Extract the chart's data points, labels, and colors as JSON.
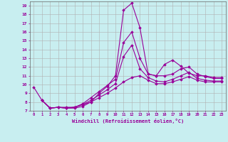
{
  "title": "",
  "xlabel": "Windchill (Refroidissement éolien,°C)",
  "background_color": "#c8eef0",
  "grid_color": "#b0b0b0",
  "line_color": "#990099",
  "xlim": [
    -0.5,
    23.5
  ],
  "ylim": [
    7,
    19.5
  ],
  "xticks": [
    0,
    1,
    2,
    3,
    4,
    5,
    6,
    7,
    8,
    9,
    10,
    11,
    12,
    13,
    14,
    15,
    16,
    17,
    18,
    19,
    20,
    21,
    22,
    23
  ],
  "yticks": [
    7,
    8,
    9,
    10,
    11,
    12,
    13,
    14,
    15,
    16,
    17,
    18,
    19
  ],
  "curves": [
    {
      "x": [
        0,
        1,
        2,
        3,
        4,
        5,
        6,
        7,
        8,
        9,
        10,
        11,
        12,
        13,
        14,
        15,
        16,
        17,
        18,
        19,
        20,
        21,
        22,
        23
      ],
      "y": [
        9.7,
        8.2,
        7.3,
        7.4,
        7.3,
        7.3,
        7.5,
        8.0,
        9.0,
        9.8,
        11.0,
        18.5,
        19.3,
        16.5,
        11.2,
        11.0,
        12.3,
        12.8,
        12.1,
        11.3,
        11.0,
        11.0,
        10.8,
        10.8
      ]
    },
    {
      "x": [
        1,
        2,
        3,
        4,
        5,
        6,
        7,
        8,
        9,
        10,
        11,
        12,
        13,
        14,
        15,
        16,
        17,
        18,
        19,
        20,
        21,
        22,
        23
      ],
      "y": [
        8.2,
        7.3,
        7.4,
        7.4,
        7.4,
        7.8,
        8.5,
        9.2,
        9.9,
        10.6,
        14.8,
        16.0,
        13.0,
        11.2,
        11.0,
        11.0,
        11.2,
        11.8,
        12.0,
        11.2,
        10.9,
        10.7,
        10.7
      ]
    },
    {
      "x": [
        1,
        2,
        3,
        4,
        5,
        6,
        7,
        8,
        9,
        10,
        11,
        12,
        13,
        14,
        15,
        16,
        17,
        18,
        19,
        20,
        21,
        22,
        23
      ],
      "y": [
        8.2,
        7.3,
        7.4,
        7.3,
        7.4,
        7.7,
        8.2,
        8.8,
        9.4,
        10.1,
        13.2,
        14.5,
        11.8,
        10.8,
        10.4,
        10.3,
        10.6,
        11.0,
        11.4,
        10.7,
        10.5,
        10.4,
        10.4
      ]
    },
    {
      "x": [
        1,
        2,
        3,
        4,
        5,
        6,
        7,
        8,
        9,
        10,
        11,
        12,
        13,
        14,
        15,
        16,
        17,
        18,
        19,
        20,
        21,
        22,
        23
      ],
      "y": [
        8.2,
        7.3,
        7.4,
        7.3,
        7.4,
        7.7,
        8.0,
        8.5,
        9.0,
        9.6,
        10.3,
        10.8,
        11.0,
        10.5,
        10.1,
        10.1,
        10.3,
        10.6,
        10.9,
        10.5,
        10.3,
        10.3,
        10.3
      ]
    }
  ],
  "marker": "D",
  "markersize": 1.8,
  "linewidth": 0.8
}
